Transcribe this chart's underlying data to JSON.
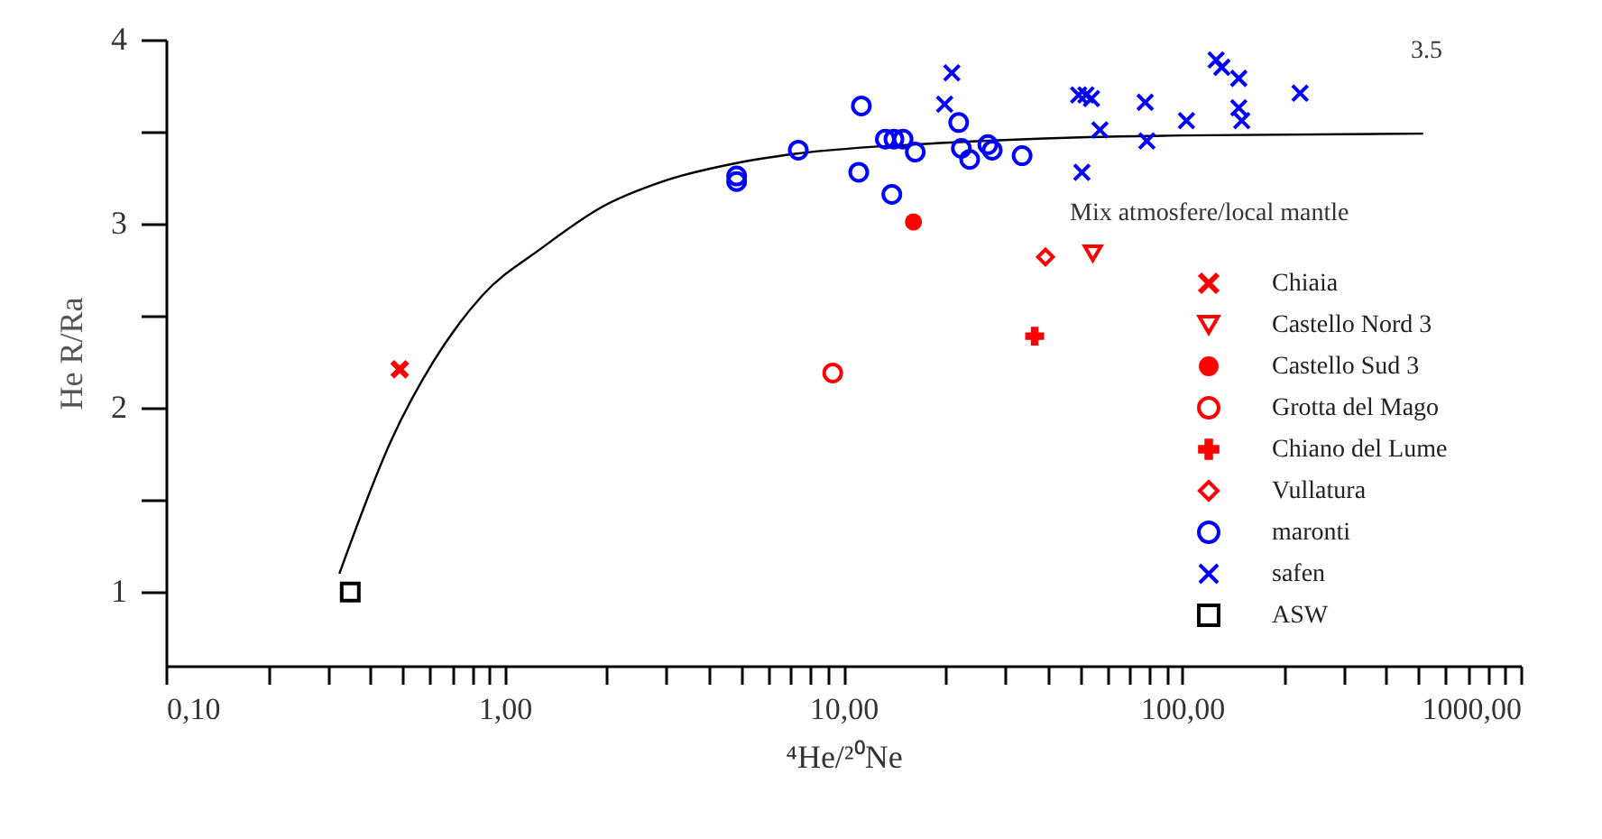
{
  "chart_data": {
    "type": "scatter",
    "xlabel": "⁴He/²⁰Ne",
    "ylabel": "He R/Ra",
    "annotations": [
      "3.5",
      "Mix  atmosfere/local mantle"
    ],
    "log": "x",
    "grid": false,
    "legend": "right",
    "xlim": [
      0.1,
      1000
    ],
    "ylim": [
      0.6,
      4
    ],
    "xticks": [
      {
        "value": 0.1,
        "label": "0,10"
      },
      {
        "value": 0.2,
        "label": null
      },
      {
        "value": 0.3,
        "label": null
      },
      {
        "value": 0.4,
        "label": null
      },
      {
        "value": 0.5,
        "label": null
      },
      {
        "value": 0.6,
        "label": null
      },
      {
        "value": 0.7,
        "label": null
      },
      {
        "value": 0.8,
        "label": null
      },
      {
        "value": 0.9,
        "label": null
      },
      {
        "value": 1,
        "label": "1,00"
      },
      {
        "value": 2,
        "label": null
      },
      {
        "value": 3,
        "label": null
      },
      {
        "value": 4,
        "label": null
      },
      {
        "value": 5,
        "label": null
      },
      {
        "value": 6,
        "label": null
      },
      {
        "value": 7,
        "label": null
      },
      {
        "value": 8,
        "label": null
      },
      {
        "value": 9,
        "label": null
      },
      {
        "value": 10,
        "label": "10,00"
      },
      {
        "value": 20,
        "label": null
      },
      {
        "value": 30,
        "label": null
      },
      {
        "value": 40,
        "label": null
      },
      {
        "value": 50,
        "label": null
      },
      {
        "value": 60,
        "label": null
      },
      {
        "value": 70,
        "label": null
      },
      {
        "value": 80,
        "label": null
      },
      {
        "value": 90,
        "label": null
      },
      {
        "value": 100,
        "label": "100,00"
      },
      {
        "value": 200,
        "label": null
      },
      {
        "value": 300,
        "label": null
      },
      {
        "value": 400,
        "label": null
      },
      {
        "value": 500,
        "label": null
      },
      {
        "value": 600,
        "label": null
      },
      {
        "value": 700,
        "label": null
      },
      {
        "value": 800,
        "label": null
      },
      {
        "value": 900,
        "label": null
      },
      {
        "value": 1000,
        "label": "1000,00"
      }
    ],
    "yticks": [
      1,
      {
        "value": 1.5,
        "label": null
      },
      2,
      {
        "value": 2.5,
        "label": null
      },
      3,
      {
        "value": 3.5,
        "label": null
      },
      4
    ],
    "series": [
      {
        "type": "line",
        "color": "#000000",
        "marker": "none",
        "x": [
          0.325,
          0.464,
          0.615,
          0.858,
          1.29,
          1.93,
          2.93,
          4.84,
          7.2,
          20,
          50,
          100,
          515
        ],
        "values": [
          1.1,
          1.83,
          2.25,
          2.61,
          2.87,
          3.09,
          3.23,
          3.33,
          3.38,
          3.44,
          3.47,
          3.48,
          3.49
        ]
      },
      {
        "name": "Chiaia",
        "color": "#ff0000",
        "marker": "x",
        "x": [
          0.49
        ],
        "values": [
          2.21
        ]
      },
      {
        "name": "Castello Nord 3",
        "color": "#ff0000",
        "marker": "triangle",
        "x": [
          54.5
        ],
        "values": [
          2.84
        ]
      },
      {
        "name": "Castello Sud 3",
        "color": "#ff0000",
        "marker": "dot",
        "x": [
          16.1
        ],
        "values": [
          3.01
        ]
      },
      {
        "name": "Grotta del Mago",
        "color": "#ff0000",
        "marker": "circle",
        "x": [
          9.3
        ],
        "values": [
          2.19
        ]
      },
      {
        "name": "Chiano del Lume",
        "color": "#ff0000",
        "marker": "cross",
        "x": [
          36.7
        ],
        "values": [
          2.39
        ]
      },
      {
        "name": "Vullatura",
        "color": "#ff0000",
        "marker": "diamond",
        "x": [
          39.5
        ],
        "values": [
          2.82
        ]
      },
      {
        "name": "maronti",
        "color": "#0000ff",
        "marker": "circle",
        "x": [
          4.84,
          4.84,
          7.36,
          11.3,
          11.1,
          13.9,
          13.3,
          14.1,
          15.0,
          16.3,
          21.9,
          22.3,
          23.6,
          26.7,
          27.5,
          33.7
        ],
        "values": [
          3.26,
          3.23,
          3.4,
          3.64,
          3.28,
          3.16,
          3.46,
          3.46,
          3.46,
          3.39,
          3.55,
          3.41,
          3.35,
          3.43,
          3.4,
          3.37
        ]
      },
      {
        "name": "safen",
        "color": "#0000ff",
        "marker": "x",
        "x": [
          20.9,
          19.9,
          49.5,
          52,
          54,
          57.2,
          50.6,
          77.8,
          78.7,
          103,
          126,
          131,
          147,
          147,
          150,
          223
        ],
        "values": [
          3.82,
          3.65,
          3.7,
          3.7,
          3.68,
          3.51,
          3.28,
          3.66,
          3.45,
          3.56,
          3.89,
          3.85,
          3.79,
          3.63,
          3.56,
          3.71
        ]
      },
      {
        "name": "ASW",
        "color": "#000000",
        "marker": "square",
        "x": [
          0.35
        ],
        "values": [
          1.0
        ]
      }
    ]
  }
}
